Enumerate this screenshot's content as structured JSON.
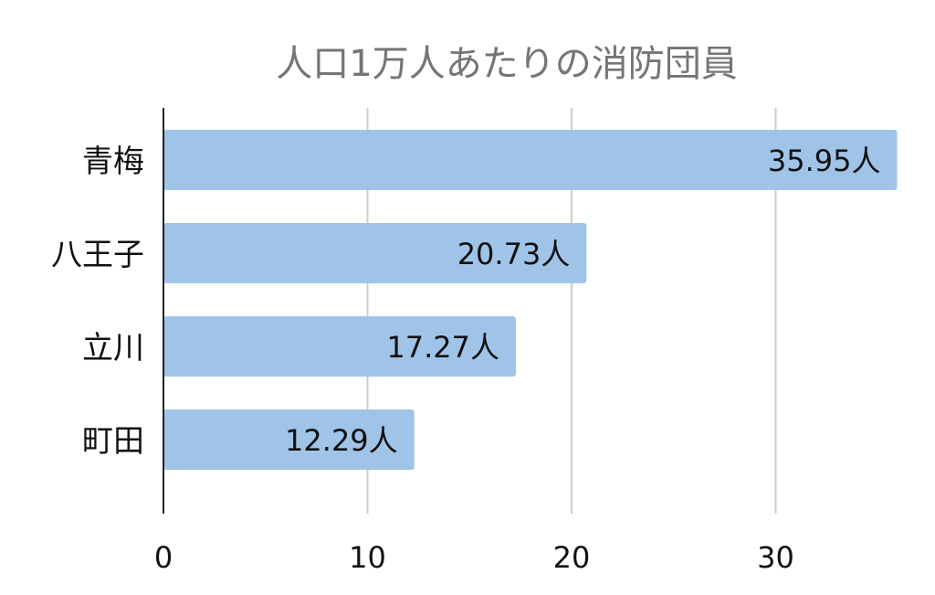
{
  "chart_data": {
    "type": "bar",
    "orientation": "horizontal",
    "title": "人口1万人あたりの消防団員",
    "categories": [
      "青梅",
      "八王子",
      "立川",
      "町田"
    ],
    "values": [
      35.95,
      20.73,
      17.27,
      12.29
    ],
    "data_labels": [
      "35.95人",
      "20.73人",
      "17.27人",
      "12.29人"
    ],
    "xlim": [
      0,
      36
    ],
    "x_ticks": [
      0,
      10,
      20,
      30
    ],
    "x_tick_labels": [
      "0",
      "10",
      "20",
      "30"
    ],
    "grid": "vertical",
    "legend": "none",
    "colors": {
      "bar": "#a0c4e8",
      "grid": "#cccccc",
      "axis": "#222222",
      "title": "#757575"
    }
  }
}
